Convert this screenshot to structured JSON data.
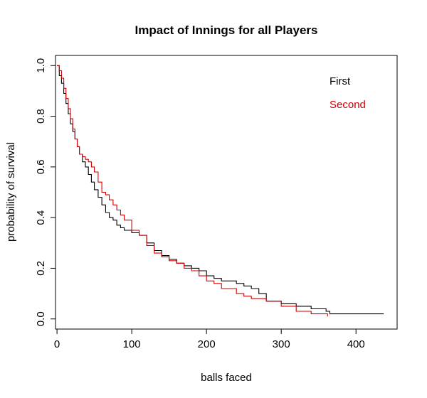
{
  "chart_data": {
    "type": "line",
    "step": true,
    "title": "Impact of Innings for all Players",
    "xlabel": "balls faced",
    "ylabel": "probability of survival",
    "xlim": [
      -2,
      455
    ],
    "ylim": [
      -0.04,
      1.04
    ],
    "xticks": [
      0,
      100,
      200,
      300,
      400
    ],
    "yticks": [
      0.0,
      0.2,
      0.4,
      0.6,
      0.8,
      1.0
    ],
    "xtick_labels": [
      "0",
      "100",
      "200",
      "300",
      "400"
    ],
    "ytick_labels": [
      "0.0",
      "0.2",
      "0.4",
      "0.6",
      "0.8",
      "1.0"
    ],
    "grid": false,
    "legend_position": "top-right",
    "series": [
      {
        "name": "First",
        "color": "#000000",
        "x": [
          0,
          3,
          6,
          9,
          12,
          15,
          18,
          21,
          24,
          27,
          30,
          34,
          38,
          42,
          46,
          50,
          55,
          60,
          65,
          70,
          75,
          80,
          85,
          90,
          100,
          110,
          120,
          130,
          140,
          150,
          160,
          170,
          180,
          190,
          200,
          210,
          220,
          240,
          250,
          260,
          270,
          280,
          300,
          320,
          340,
          360,
          365,
          437
        ],
        "y": [
          1.0,
          0.96,
          0.93,
          0.89,
          0.85,
          0.81,
          0.77,
          0.74,
          0.71,
          0.68,
          0.65,
          0.62,
          0.6,
          0.57,
          0.54,
          0.51,
          0.48,
          0.45,
          0.42,
          0.4,
          0.39,
          0.37,
          0.36,
          0.35,
          0.34,
          0.33,
          0.3,
          0.27,
          0.25,
          0.235,
          0.22,
          0.21,
          0.2,
          0.19,
          0.17,
          0.16,
          0.15,
          0.14,
          0.13,
          0.12,
          0.1,
          0.07,
          0.06,
          0.05,
          0.04,
          0.03,
          0.02,
          0.02
        ]
      },
      {
        "name": "Second",
        "color": "#d00000",
        "x": [
          0,
          3,
          6,
          9,
          12,
          15,
          18,
          21,
          24,
          27,
          30,
          34,
          38,
          42,
          46,
          50,
          55,
          60,
          65,
          70,
          75,
          80,
          85,
          90,
          100,
          110,
          120,
          130,
          140,
          150,
          160,
          170,
          180,
          190,
          200,
          210,
          220,
          240,
          250,
          260,
          280,
          300,
          320,
          340,
          362
        ],
        "y": [
          1.0,
          0.98,
          0.95,
          0.91,
          0.87,
          0.83,
          0.79,
          0.75,
          0.71,
          0.68,
          0.65,
          0.64,
          0.63,
          0.62,
          0.6,
          0.58,
          0.54,
          0.5,
          0.49,
          0.47,
          0.45,
          0.43,
          0.41,
          0.39,
          0.35,
          0.33,
          0.29,
          0.26,
          0.245,
          0.23,
          0.22,
          0.2,
          0.19,
          0.17,
          0.15,
          0.14,
          0.12,
          0.1,
          0.09,
          0.08,
          0.07,
          0.05,
          0.03,
          0.02,
          0.01
        ]
      }
    ]
  }
}
